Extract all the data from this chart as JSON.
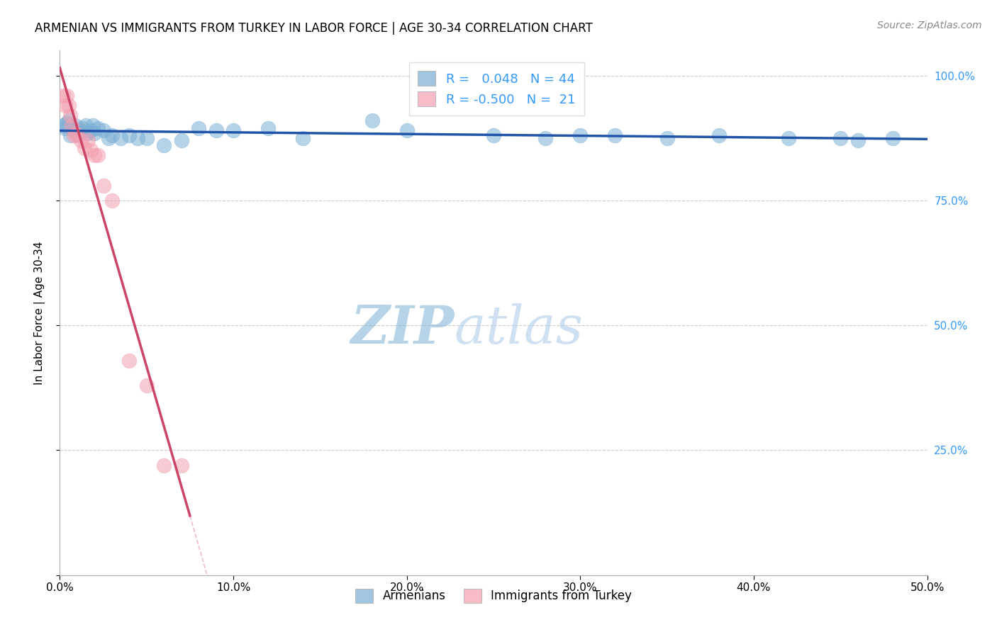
{
  "title": "ARMENIAN VS IMMIGRANTS FROM TURKEY IN LABOR FORCE | AGE 30-34 CORRELATION CHART",
  "source": "Source: ZipAtlas.com",
  "ylabel": "In Labor Force | Age 30-34",
  "xlim": [
    0.0,
    0.5
  ],
  "ylim": [
    0.0,
    1.05
  ],
  "blue_R": 0.048,
  "blue_N": 44,
  "pink_R": -0.5,
  "pink_N": 21,
  "blue_color": "#7BAFD4",
  "pink_color": "#F4A0B0",
  "trendline_blue_color": "#2255AA",
  "trendline_pink_color": "#CC4466",
  "watermark_zip": "ZIP",
  "watermark_atlas": "atlas",
  "legend_label_blue": "Armenians",
  "legend_label_pink": "Immigrants from Turkey",
  "blue_x": [
    0.002,
    0.003,
    0.004,
    0.005,
    0.006,
    0.007,
    0.008,
    0.009,
    0.01,
    0.011,
    0.012,
    0.013,
    0.015,
    0.016,
    0.018,
    0.019,
    0.02,
    0.022,
    0.025,
    0.028,
    0.03,
    0.035,
    0.04,
    0.045,
    0.05,
    0.06,
    0.07,
    0.08,
    0.09,
    0.1,
    0.12,
    0.14,
    0.18,
    0.2,
    0.25,
    0.28,
    0.3,
    0.32,
    0.35,
    0.38,
    0.42,
    0.45,
    0.46,
    0.48
  ],
  "blue_y": [
    0.9,
    0.895,
    0.905,
    0.91,
    0.88,
    0.895,
    0.89,
    0.9,
    0.885,
    0.88,
    0.89,
    0.895,
    0.9,
    0.885,
    0.89,
    0.9,
    0.885,
    0.895,
    0.89,
    0.875,
    0.88,
    0.875,
    0.88,
    0.875,
    0.875,
    0.86,
    0.87,
    0.895,
    0.89,
    0.89,
    0.895,
    0.875,
    0.91,
    0.89,
    0.88,
    0.875,
    0.88,
    0.88,
    0.875,
    0.88,
    0.875,
    0.875,
    0.87,
    0.875
  ],
  "pink_x": [
    0.002,
    0.003,
    0.004,
    0.005,
    0.006,
    0.007,
    0.008,
    0.009,
    0.01,
    0.012,
    0.014,
    0.016,
    0.018,
    0.02,
    0.022,
    0.025,
    0.03,
    0.04,
    0.05,
    0.06,
    0.07
  ],
  "pink_y": [
    0.96,
    0.94,
    0.96,
    0.94,
    0.92,
    0.9,
    0.88,
    0.885,
    0.88,
    0.87,
    0.855,
    0.87,
    0.85,
    0.84,
    0.84,
    0.78,
    0.75,
    0.43,
    0.38,
    0.22,
    0.22
  ],
  "pink_trendline_x0": 0.0,
  "pink_trendline_y0": 1.0,
  "pink_trendline_x1": 0.07,
  "pink_trendline_y1": 0.27
}
